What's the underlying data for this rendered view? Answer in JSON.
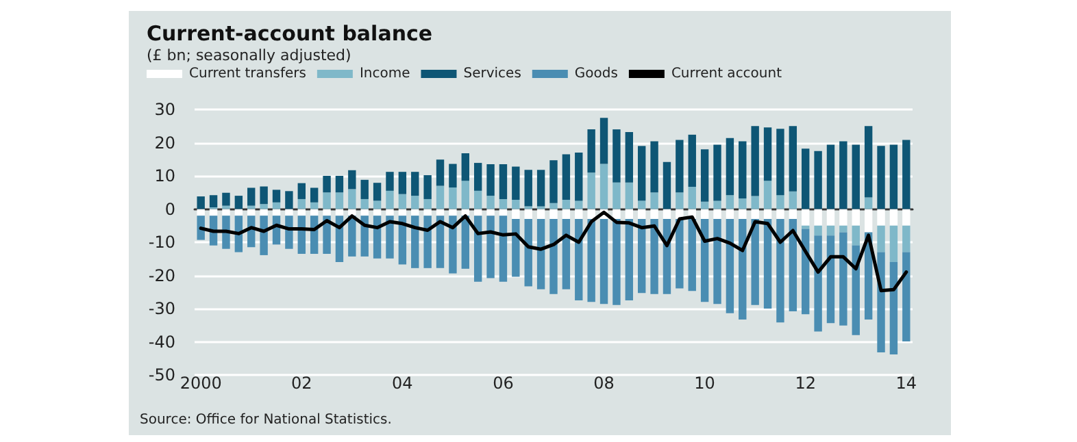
{
  "chart_data": {
    "type": "bar",
    "title": "Current-account balance",
    "subtitle": "(£ bn; seasonally adjusted)",
    "annotations": [
      "Source: Office for National Statistics."
    ],
    "categories": [
      "2000",
      null,
      null,
      null,
      null,
      null,
      null,
      null,
      "02",
      null,
      null,
      null,
      null,
      null,
      null,
      null,
      "04",
      null,
      null,
      null,
      null,
      null,
      null,
      null,
      "06",
      null,
      null,
      null,
      null,
      null,
      null,
      null,
      "08",
      null,
      null,
      null,
      null,
      null,
      null,
      null,
      "10",
      null,
      null,
      null,
      null,
      null,
      null,
      null,
      "12",
      null,
      null,
      null,
      null,
      null,
      null,
      null,
      "14"
    ],
    "stacked": true,
    "legend": "top left",
    "grid": "y",
    "ylim": [
      -50,
      30
    ],
    "yticks": [
      -50,
      -40,
      -30,
      -20,
      -10,
      0,
      10,
      20,
      30
    ],
    "marker": "none",
    "line_style": "solid",
    "series": [
      {
        "name": "Current transfers",
        "color": "#ffffff",
        "values": [
          -2,
          -2,
          -2,
          -2,
          -2,
          -2,
          -2,
          -2,
          -2,
          -2,
          -2,
          -2,
          -2,
          -2,
          -2,
          -2,
          -2,
          -2,
          -2,
          -2,
          -2,
          -2,
          -2,
          -2,
          -2,
          -3,
          -3,
          -3,
          -3,
          -3,
          -3,
          -3,
          -3,
          -3,
          -3,
          -3,
          -3,
          -3,
          -3,
          -3,
          -3,
          -3,
          -3,
          -3,
          -3,
          -3,
          -3,
          -3,
          -5,
          -5,
          -5,
          -5,
          -5,
          -7,
          -5,
          -5,
          -5
        ]
      },
      {
        "name": "Income",
        "color": "#7fb8c9",
        "values": [
          0,
          0.5,
          1,
          0,
          1,
          1.5,
          2,
          0,
          3,
          2,
          5,
          5,
          6,
          3,
          2.5,
          5.5,
          4.5,
          4,
          3,
          7,
          6.5,
          8.5,
          5.5,
          4,
          3,
          2.8,
          0.8,
          0.8,
          1.8,
          2.8,
          2.5,
          11,
          13.6,
          8,
          8,
          2.5,
          5,
          0,
          5,
          6.7,
          2.2,
          2.5,
          4.2,
          3.2,
          3.9,
          8.5,
          4.2,
          5.3,
          -1,
          -3,
          -3,
          -2,
          -6,
          3.5,
          -8,
          -11,
          -8
        ]
      },
      {
        "name": "Services",
        "color": "#0e5675",
        "values": [
          3.8,
          3.7,
          3.9,
          4,
          5.4,
          5.3,
          3.8,
          5.4,
          4.8,
          4.4,
          5,
          5,
          5.7,
          5.8,
          5.4,
          5.7,
          6.7,
          7.2,
          7.2,
          7.9,
          7.1,
          8.3,
          8.4,
          9.5,
          10.5,
          10,
          11,
          11,
          12.9,
          13.7,
          14.5,
          13,
          13.9,
          16,
          15.2,
          16.5,
          15.4,
          14.2,
          15.8,
          15.7,
          15.8,
          16.9,
          17.2,
          17.2,
          21.1,
          16.1,
          20,
          19.7,
          18.2,
          17.5,
          19.4,
          20.4,
          19.4,
          21.5,
          19,
          19.4,
          20.8
        ]
      },
      {
        "name": "Goods",
        "color": "#4a8db2",
        "values": [
          -7.3,
          -9,
          -10,
          -11,
          -9.5,
          -11.9,
          -8.7,
          -10,
          -11.5,
          -11.5,
          -11.5,
          -14,
          -12.3,
          -12.3,
          -12.9,
          -12.9,
          -14.7,
          -15.8,
          -15.8,
          -15.8,
          -17.4,
          -16,
          -19.9,
          -18.8,
          -19.9,
          -17.4,
          -20.3,
          -21.2,
          -22.6,
          -21.2,
          -24.5,
          -25,
          -25.6,
          -25.9,
          -24.5,
          -22.3,
          -22.6,
          -22.6,
          -20.9,
          -21.7,
          -25,
          -25.6,
          -28.4,
          -30.3,
          -25.9,
          -27,
          -31.2,
          -27.8,
          -25.7,
          -28.9,
          -26.4,
          -28.1,
          -27,
          -26.3,
          -30.2,
          -27.8,
          -26.9
        ]
      },
      {
        "name": "Current account",
        "type": "line",
        "color": "#000000",
        "values": [
          -5.8,
          -6.7,
          -6.7,
          -7.4,
          -5.6,
          -6.7,
          -4.9,
          -6,
          -6,
          -6.2,
          -3.5,
          -5.6,
          -2.1,
          -4.9,
          -5.6,
          -3.8,
          -4.4,
          -5.6,
          -6.4,
          -3.8,
          -5.6,
          -2.1,
          -7.4,
          -6.9,
          -7.8,
          -7.5,
          -11.4,
          -12.1,
          -10.7,
          -7.9,
          -10,
          -3.8,
          -1,
          -4,
          -4.2,
          -5.6,
          -5.1,
          -11,
          -3,
          -2.4,
          -9.7,
          -8.9,
          -10.3,
          -12.5,
          -3.8,
          -4.4,
          -10,
          -6.5,
          -12.8,
          -19,
          -14.4,
          -14.4,
          -18,
          -7.9,
          -24.6,
          -24.3,
          -19
        ]
      }
    ]
  }
}
